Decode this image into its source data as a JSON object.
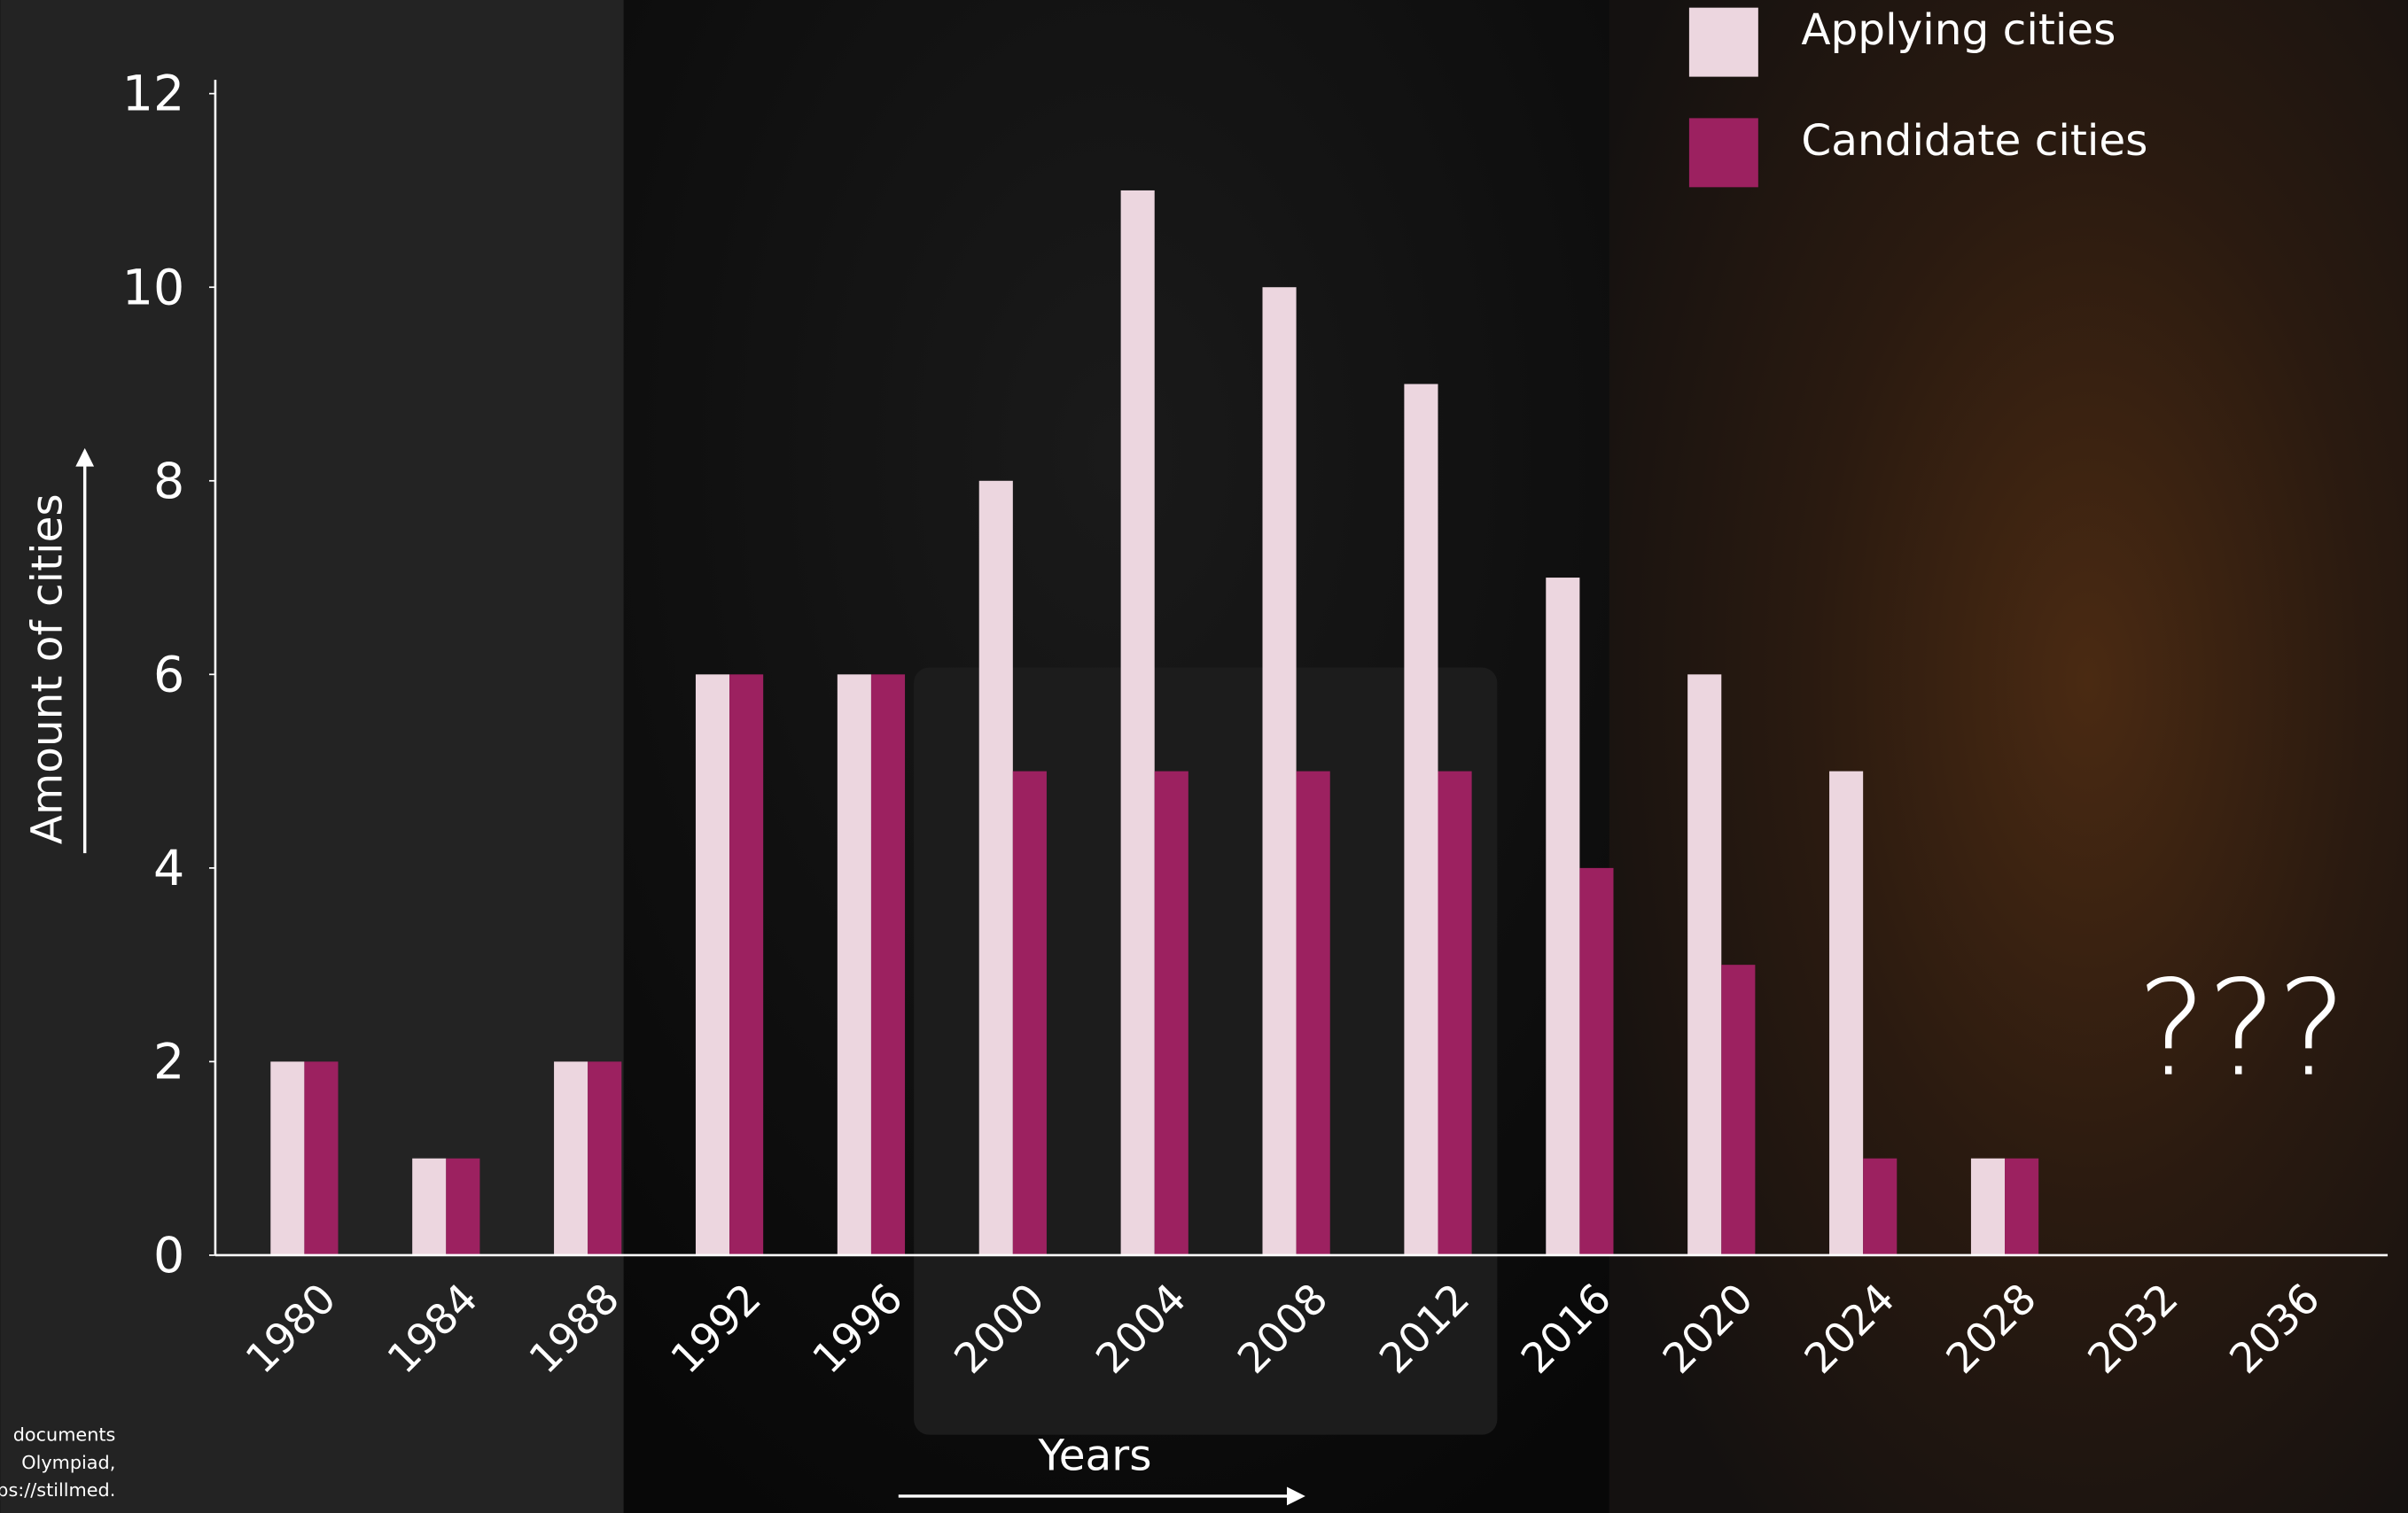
{
  "chart_data": {
    "type": "bar",
    "y_label": "Amount of cities",
    "x_label": "Years",
    "annotation": "???",
    "source_lines": [
      "documents",
      "Olympiad,",
      "ps://stillmed."
    ],
    "categories": [
      "1980",
      "1984",
      "1988",
      "1992",
      "1996",
      "2000",
      "2004",
      "2008",
      "2012",
      "2016",
      "2020",
      "2024",
      "2028",
      "2032",
      "2036"
    ],
    "series": [
      {
        "name": "Applying cities",
        "color": "#ecd6df",
        "values": [
          2,
          1,
          2,
          6,
          6,
          8,
          11,
          10,
          9,
          7,
          6,
          5,
          1,
          null,
          null
        ]
      },
      {
        "name": "Candidate cities",
        "color": "#9c2160",
        "values": [
          2,
          1,
          2,
          6,
          6,
          5,
          5,
          5,
          5,
          4,
          3,
          1,
          1,
          null,
          null
        ]
      }
    ],
    "ylim": [
      0,
      12
    ],
    "yticks": [
      0,
      2,
      4,
      6,
      8,
      10,
      12
    ],
    "grid": false,
    "legend": "top-right"
  }
}
